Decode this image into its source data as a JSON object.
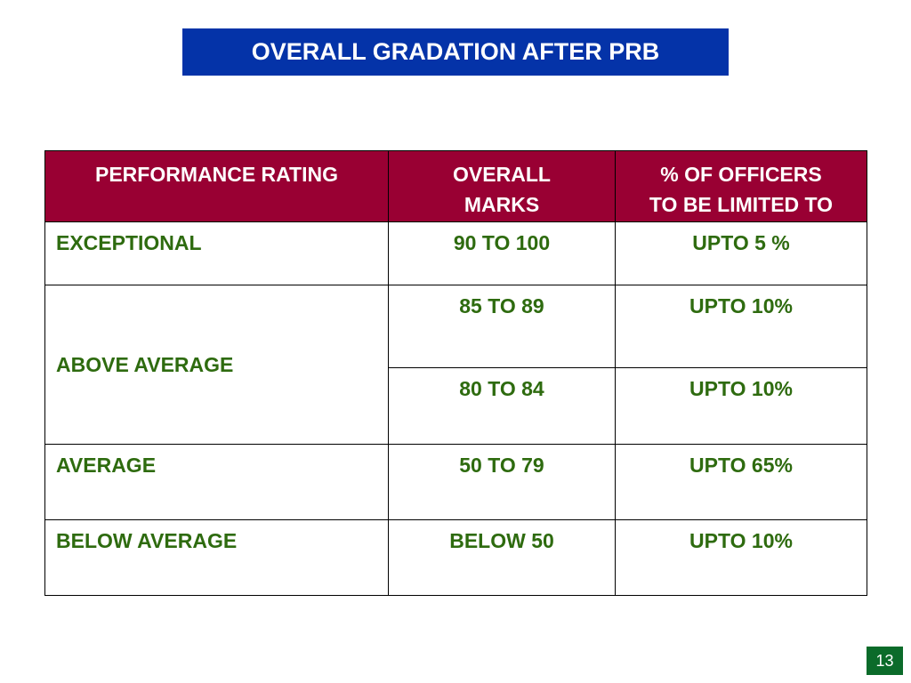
{
  "title": "OVERALL GRADATION AFTER PRB",
  "table": {
    "headers": [
      "PERFORMANCE RATING",
      "OVERALL\nMARKS",
      "% OF OFFICERS\nTO BE LIMITED TO"
    ],
    "headers_lines": {
      "h1": [
        "PERFORMANCE RATING"
      ],
      "h2": [
        "OVERALL",
        "MARKS"
      ],
      "h3": [
        "% OF OFFICERS",
        "TO BE LIMITED TO"
      ]
    },
    "rows": [
      {
        "rating": "EXCEPTIONAL",
        "marks": "90 TO 100",
        "percent": "UPTO 5 %"
      },
      {
        "rating": "ABOVE AVERAGE",
        "marks": "85 TO 89",
        "percent": "UPTO 10%"
      },
      {
        "rating": "ABOVE AVERAGE",
        "marks": "80 TO 84",
        "percent": "UPTO 10%"
      },
      {
        "rating": "AVERAGE",
        "marks": "50 TO 79",
        "percent": "UPTO 65%"
      },
      {
        "rating": "BELOW AVERAGE",
        "marks": "BELOW 50",
        "percent": "UPTO 10%"
      }
    ]
  },
  "page_number": "13",
  "colors": {
    "title_bg": "#0433a8",
    "header_bg": "#990033",
    "body_text": "#2e6b0f",
    "page_num_bg": "#0b6b2a"
  }
}
